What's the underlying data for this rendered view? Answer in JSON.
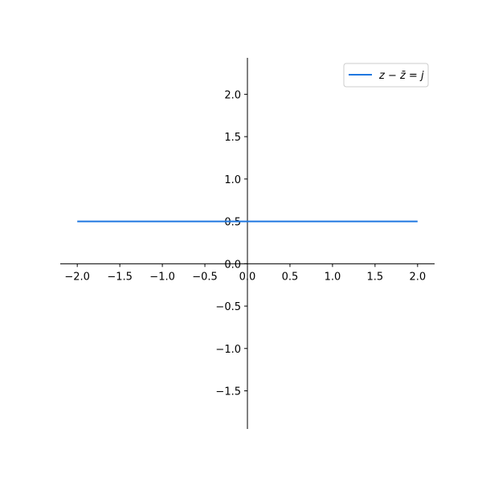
{
  "chart_data": {
    "type": "line",
    "title": "",
    "xlabel": "",
    "ylabel": "",
    "xlim": [
      -2.2,
      2.2
    ],
    "ylim": [
      -1.95,
      2.43
    ],
    "x_ticks": [
      -2.0,
      -1.5,
      -1.0,
      -0.5,
      0.0,
      0.5,
      1.0,
      1.5,
      2.0
    ],
    "y_ticks": [
      -1.5,
      -1.0,
      -0.5,
      0.0,
      0.5,
      1.0,
      1.5,
      2.0
    ],
    "x_tick_labels": [
      "−2.0",
      "−1.5",
      "−1.0",
      "−0.5",
      "0.0",
      "0.5",
      "1.0",
      "1.5",
      "2.0"
    ],
    "y_tick_labels": [
      "−1.5",
      "−1.0",
      "−0.5",
      "0.0",
      "0.5",
      "1.0",
      "1.5",
      "2.0"
    ],
    "grid": false,
    "legend_position": "top-right",
    "series": [
      {
        "name": "z − z̄ = j",
        "color": "#1f77e0",
        "x": [
          -2.0,
          2.0
        ],
        "y": [
          0.5,
          0.5
        ]
      }
    ]
  }
}
